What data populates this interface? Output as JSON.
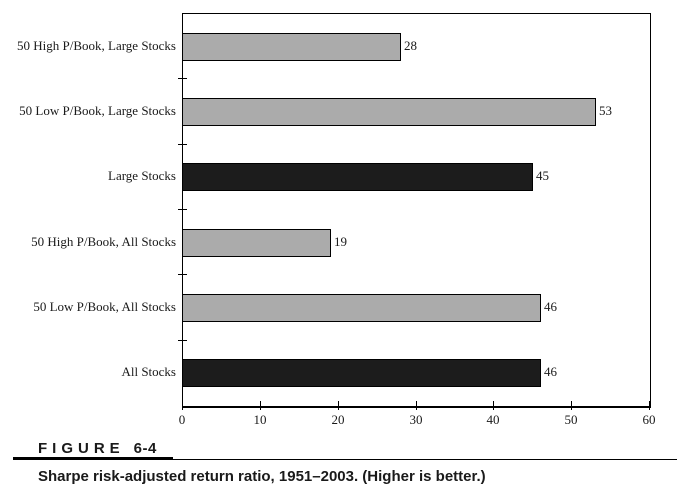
{
  "figure": {
    "label_word": "FIGURE",
    "label_number": "6-4",
    "caption": "Sharpe risk-adjusted return ratio, 1951–2003. (Higher is better.)"
  },
  "colors": {
    "gray_bar": "#ababab",
    "black_bar": "#1c1c1c",
    "axis": "#000000",
    "background": "#ffffff"
  },
  "chart_data": {
    "type": "bar",
    "orientation": "horizontal",
    "title": "Sharpe risk-adjusted return ratio, 1951–2003",
    "xlabel": "",
    "ylabel": "",
    "categories": [
      "50 High P/Book, Large Stocks",
      "50 Low P/Book, Large Stocks",
      "Large Stocks",
      "50 High P/Book, All Stocks",
      "50 Low P/Book, All Stocks",
      "All Stocks"
    ],
    "values": [
      28,
      53,
      45,
      19,
      46,
      46
    ],
    "value_labels": [
      "28",
      "53",
      "45",
      "19",
      "46",
      "46"
    ],
    "bar_colors": [
      "#ababab",
      "#ababab",
      "#1c1c1c",
      "#ababab",
      "#ababab",
      "#1c1c1c"
    ],
    "xlim": [
      0,
      60
    ],
    "xticks": [
      0,
      10,
      20,
      30,
      40,
      50,
      60
    ],
    "xtick_labels": [
      "0",
      "10",
      "20",
      "30",
      "40",
      "50",
      "60"
    ],
    "grid": false,
    "legend": false
  }
}
